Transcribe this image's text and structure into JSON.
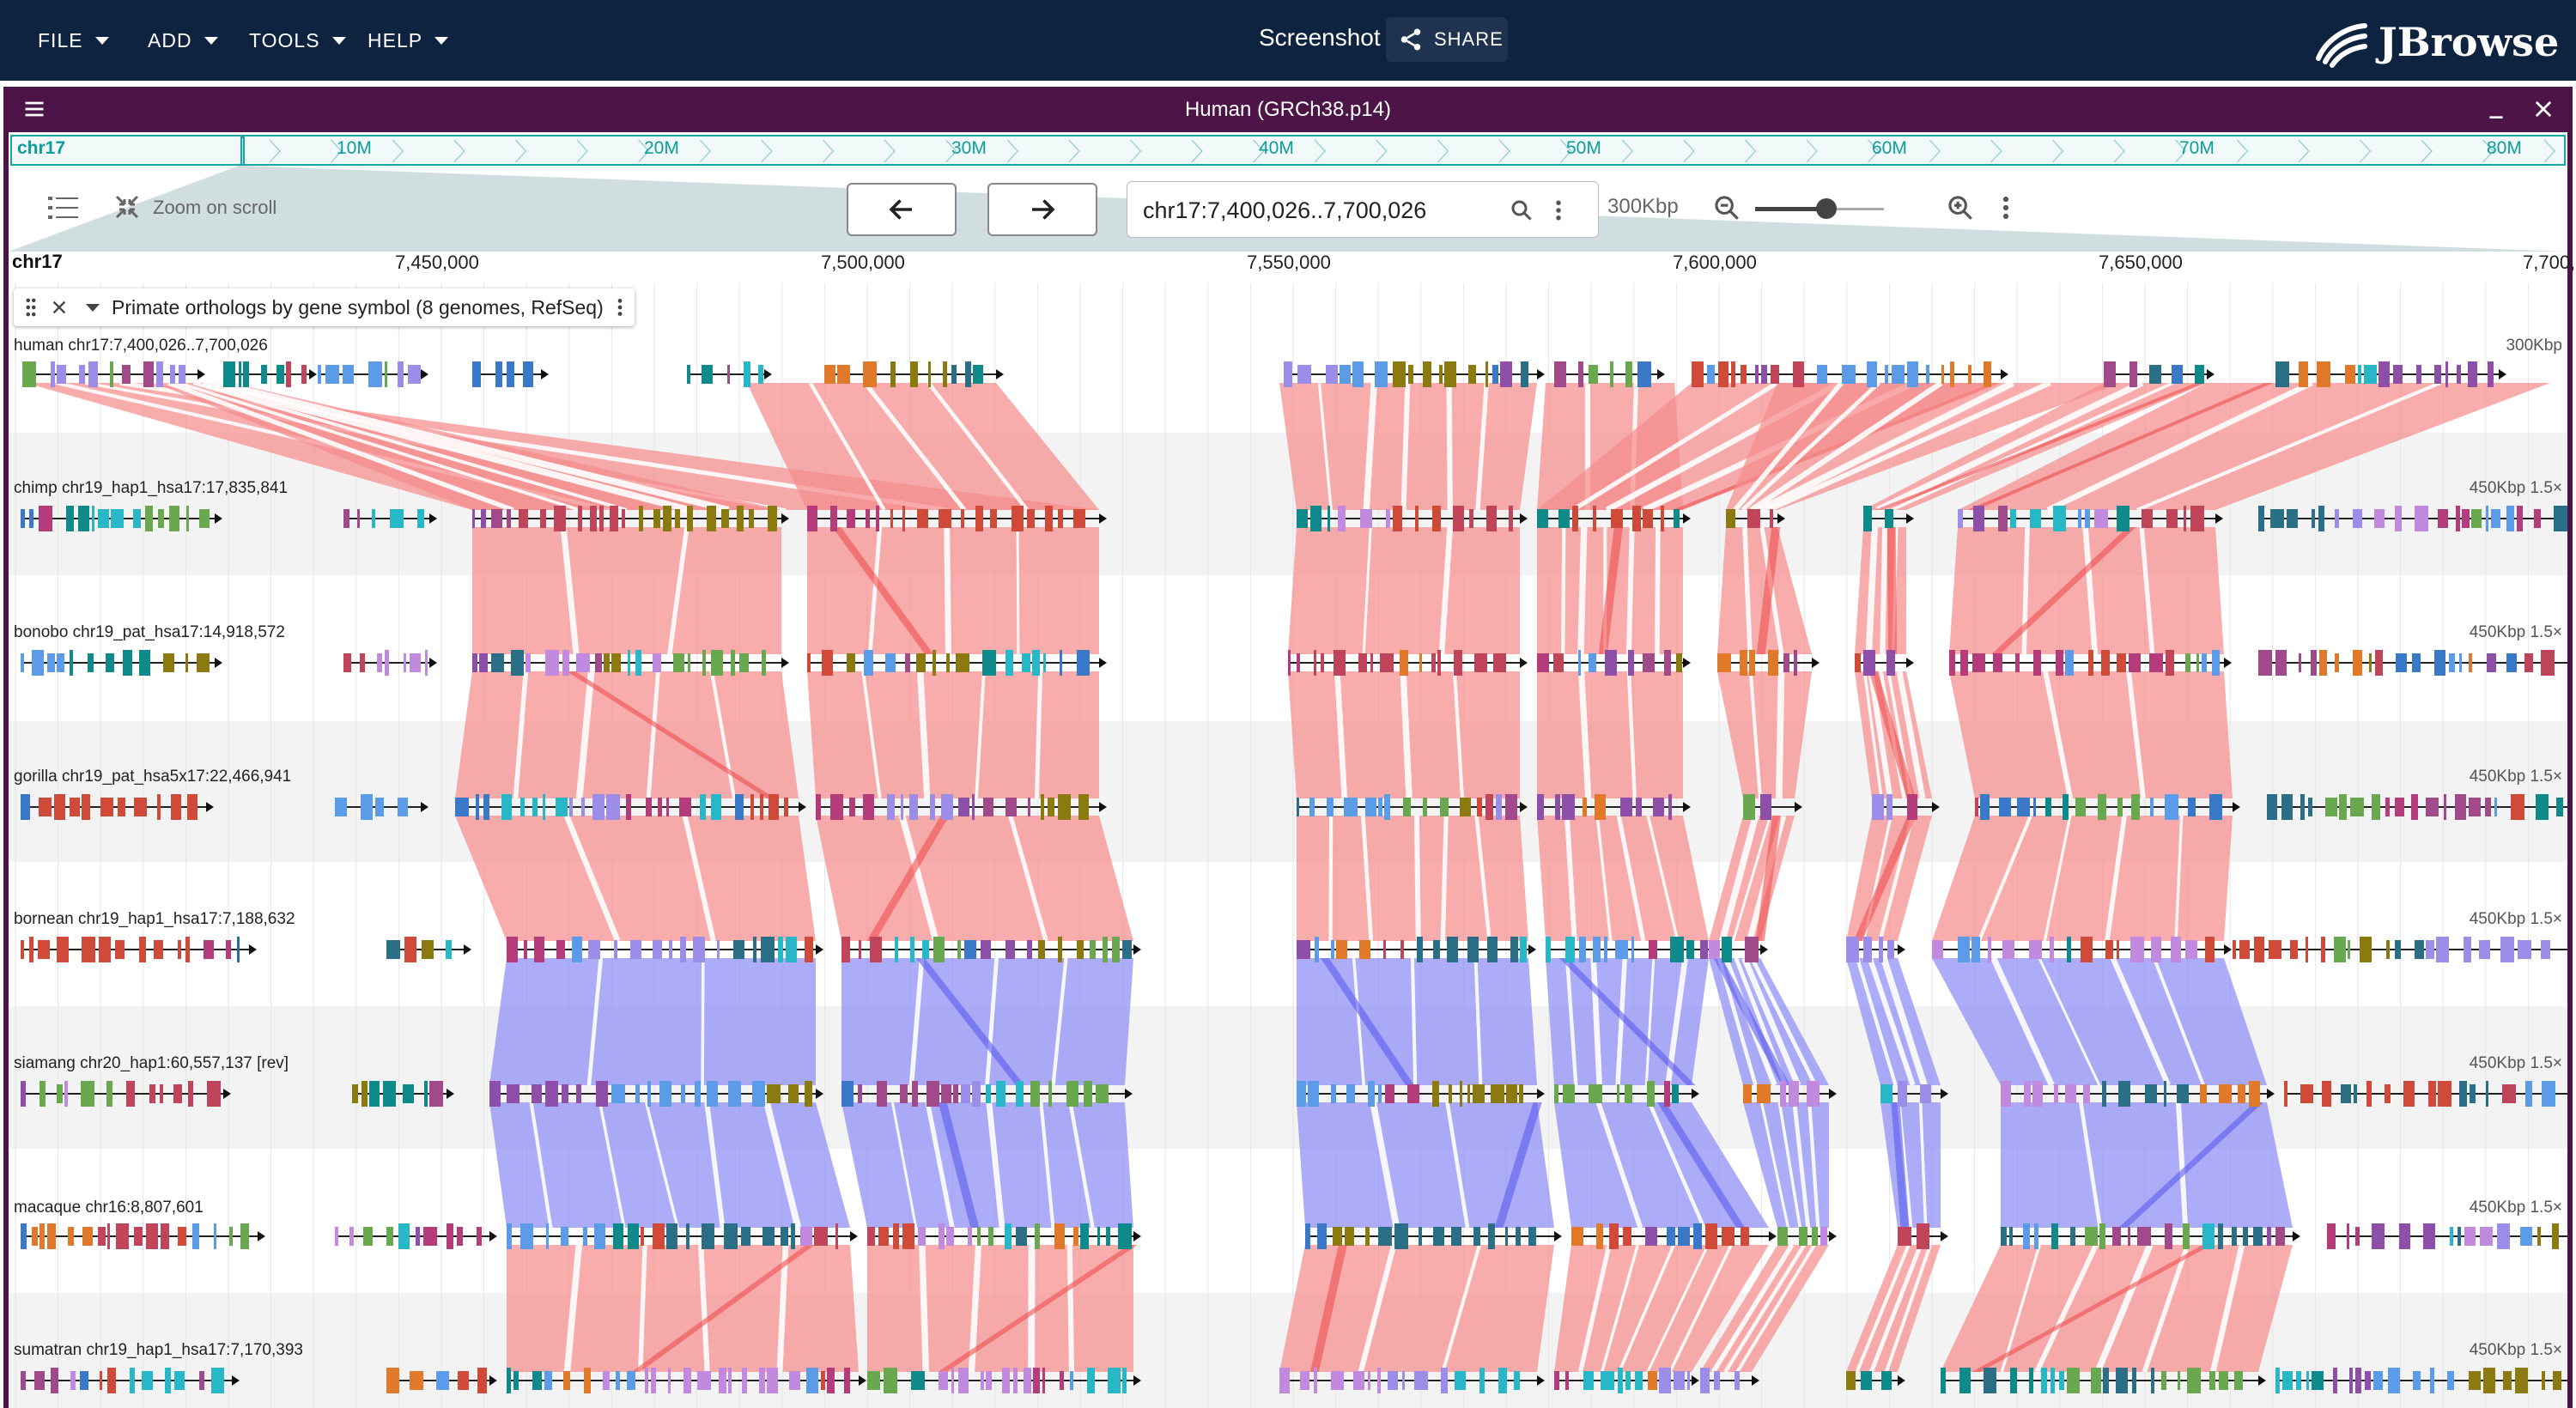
{
  "menu": [
    {
      "label": "FILE"
    },
    {
      "label": "ADD"
    },
    {
      "label": "TOOLS"
    },
    {
      "label": "HELP"
    }
  ],
  "session_title": "Screenshot",
  "share_label": "SHARE",
  "brand": "JBrowse",
  "view": {
    "title": "Human (GRCh38.p14)",
    "overview": {
      "chr": "chr17",
      "ticks": [
        "10M",
        "20M",
        "30M",
        "40M",
        "50M",
        "60M",
        "70M",
        "80M"
      ]
    },
    "zoom_on_scroll": "Zoom on scroll",
    "locstring": "chr17:7,400,026..7,700,026",
    "span": "300Kbp",
    "zoom_level": 0.55,
    "ruler": {
      "chr": "chr17",
      "ticks": [
        "7,450,000",
        "7,500,000",
        "7,550,000",
        "7,600,000",
        "7,650,000",
        "7,700,000"
      ]
    },
    "track_name": "Primate orthologs by gene symbol (8 genomes, RefSeq)",
    "genomes": [
      {
        "label": "human chr17:7,400,026..7,700,026",
        "scale": "300Kbp"
      },
      {
        "label": "chimp chr19_hap1_hsa17:17,835,841",
        "scale": "450Kbp 1.5×"
      },
      {
        "label": "bonobo chr19_pat_hsa17:14,918,572",
        "scale": "450Kbp 1.5×"
      },
      {
        "label": "gorilla chr19_pat_hsa5x17:22,466,941",
        "scale": "450Kbp 1.5×"
      },
      {
        "label": "bornean chr19_hap1_hsa17:7,188,632",
        "scale": "450Kbp 1.5×"
      },
      {
        "label": "siamang chr20_hap1:60,557,137 [rev]",
        "scale": "450Kbp 1.5×"
      },
      {
        "label": "macaque chr16:8,807,601",
        "scale": "450Kbp 1.5×"
      },
      {
        "label": "sumatran chr19_hap1_hsa17:7,170,393",
        "scale": "450Kbp 1.5×"
      }
    ]
  },
  "colors": {
    "app_bar": "#0e2340",
    "view_header": "#4d1447",
    "accent_teal": "#1aa5a5",
    "synteny_forward": "#f58c8c",
    "synteny_reverse": "#8c8cf5"
  }
}
